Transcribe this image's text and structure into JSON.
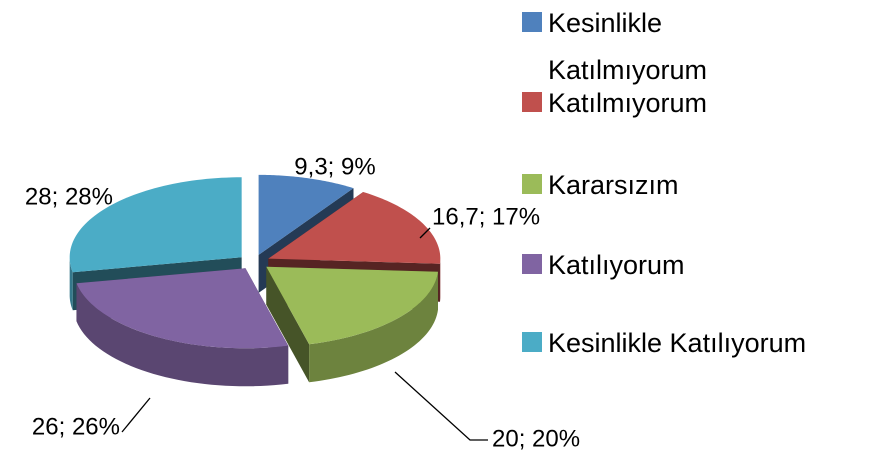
{
  "chart_data": {
    "type": "pie",
    "3d": true,
    "exploded": true,
    "categories": [
      "Kesinlikle Katılmıyorum",
      "Katılmıyorum",
      "Kararsızım",
      "Katılıyorum",
      "Kesinlikle Katılıyorum"
    ],
    "values": [
      9.3,
      16.7,
      20,
      26,
      28
    ],
    "value_labels": [
      "9,3; 9%",
      "16,7; 17%",
      "20; 20%",
      "26; 26%",
      "28; 28%"
    ],
    "colors": [
      "#4f81bd",
      "#c0504d",
      "#9bbb59",
      "#8064a2",
      "#4bacc6"
    ],
    "legend": "right"
  }
}
